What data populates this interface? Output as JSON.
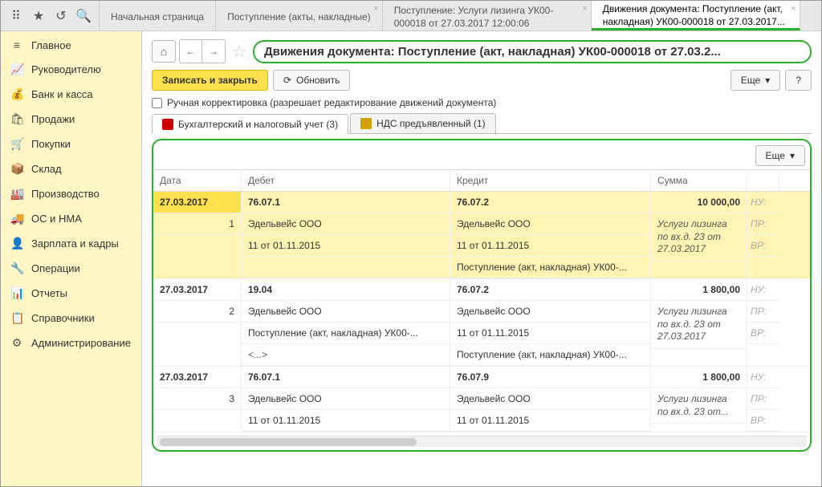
{
  "topTabs": [
    {
      "label": "Начальная страница"
    },
    {
      "label": "Поступление (акты, накладные)",
      "closable": true
    },
    {
      "label": "Поступление: Услуги лизинга УК00-000018 от 27.03.2017 12:00:06",
      "closable": true
    },
    {
      "label": "Движения документа: Поступление (акт, накладная) УК00-000018 от 27.03.2017...",
      "closable": true,
      "active": true
    }
  ],
  "sidebar": [
    {
      "icon": "≡",
      "label": "Главное"
    },
    {
      "icon": "📈",
      "label": "Руководителю"
    },
    {
      "icon": "💰",
      "label": "Банк и касса"
    },
    {
      "icon": "🛍",
      "label": "Продажи"
    },
    {
      "icon": "🛒",
      "label": "Покупки"
    },
    {
      "icon": "📦",
      "label": "Склад"
    },
    {
      "icon": "🏭",
      "label": "Производство"
    },
    {
      "icon": "🚚",
      "label": "ОС и НМА"
    },
    {
      "icon": "👤",
      "label": "Зарплата и кадры"
    },
    {
      "icon": "🔧",
      "label": "Операции"
    },
    {
      "icon": "📊",
      "label": "Отчеты"
    },
    {
      "icon": "📋",
      "label": "Справочники"
    },
    {
      "icon": "⚙",
      "label": "Администрирование"
    }
  ],
  "page": {
    "title": "Движения документа: Поступление (акт, накладная) УК00-000018 от 27.03.2...",
    "saveClose": "Записать и закрыть",
    "refresh": "Обновить",
    "more": "Еще",
    "help": "?",
    "manualEdit": "Ручная корректировка (разрешает редактирование движений документа)"
  },
  "subtabs": [
    {
      "label": "Бухгалтерский и налоговый учет (3)",
      "active": true,
      "color": "#c00"
    },
    {
      "label": "НДС предъявленный (1)",
      "color": "#d4a000"
    }
  ],
  "innerMore": "Еще",
  "headers": {
    "date": "Дата",
    "debit": "Дебет",
    "credit": "Кредит",
    "sum": "Сумма"
  },
  "rightMarks": [
    "НУ:",
    "ПР:",
    "ВР:"
  ],
  "entries": [
    {
      "selected": true,
      "date": "27.03.2017",
      "num": "1",
      "debit": [
        "76.07.1",
        "Эдельвейс ООО",
        "11 от 01.11.2015",
        ""
      ],
      "credit": [
        "76.07.2",
        "Эдельвейс ООО",
        "11 от 01.11.2015",
        "Поступление (акт, накладная) УК00-..."
      ],
      "sum": "10 000,00",
      "note": "Услуги лизинга по вх.д. 23 от 27.03.2017"
    },
    {
      "date": "27.03.2017",
      "num": "2",
      "debit": [
        "19.04",
        "Эдельвейс ООО",
        "Поступление (акт, накладная) УК00-...",
        "<...>"
      ],
      "credit": [
        "76.07.2",
        "Эдельвейс ООО",
        "11 от 01.11.2015",
        "Поступление (акт, накладная) УК00-..."
      ],
      "sum": "1 800,00",
      "note": "Услуги лизинга по вх.д. 23 от 27.03.2017"
    },
    {
      "date": "27.03.2017",
      "num": "3",
      "debit": [
        "76.07.1",
        "Эдельвейс ООО",
        "11 от 01.11.2015"
      ],
      "credit": [
        "76.07.9",
        "Эдельвейс ООО",
        "11 от 01.11.2015"
      ],
      "sum": "1 800,00",
      "note": "Услуги лизинга по вх.д. 23 от..."
    }
  ]
}
